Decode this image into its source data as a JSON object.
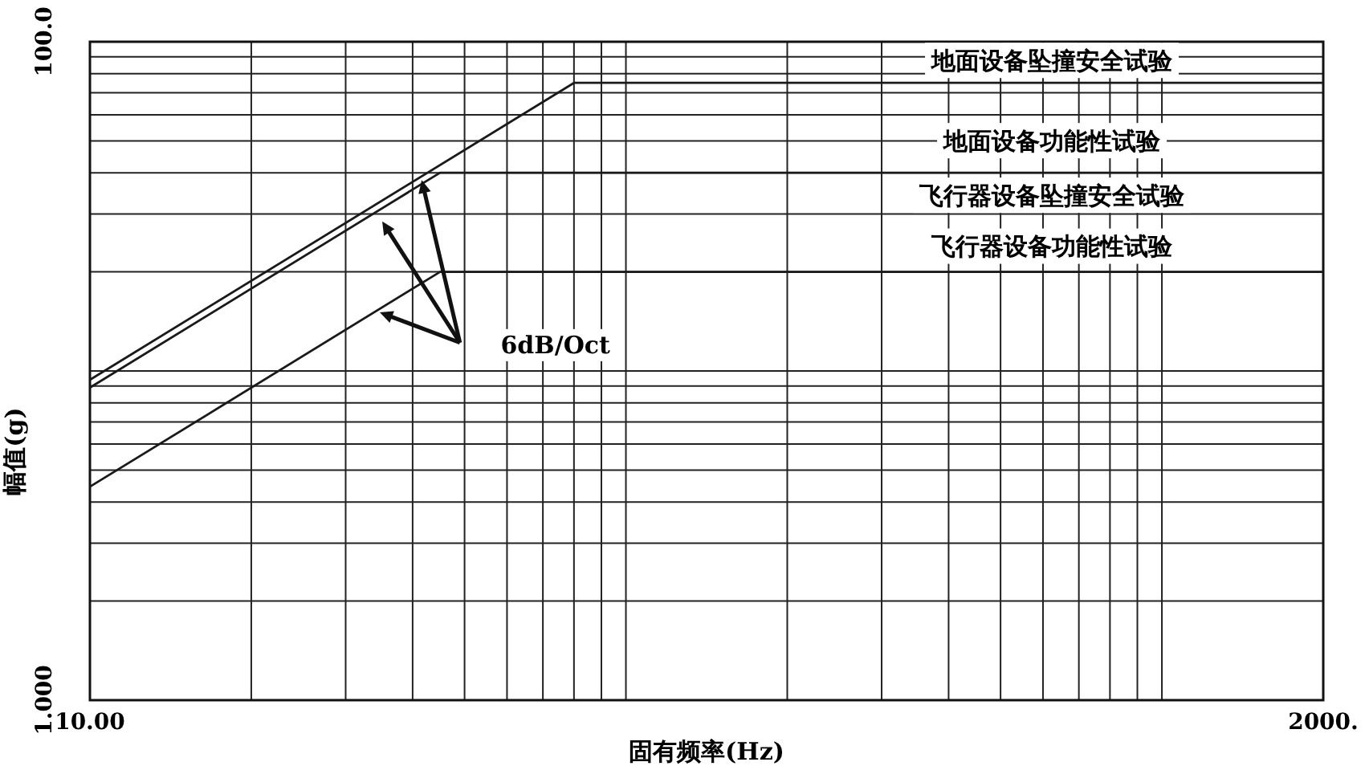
{
  "chart_data": {
    "type": "line",
    "xlabel": "固有频率(Hz)",
    "ylabel": "幅值(g)",
    "log": "xy",
    "grid": true,
    "line_style": "solid",
    "xlim": [
      10,
      2000
    ],
    "ylim": [
      1,
      100
    ],
    "xticks": [
      {
        "value": 10,
        "label": "10.00"
      },
      {
        "value": 20,
        "label": null
      },
      {
        "value": 30,
        "label": null
      },
      {
        "value": 40,
        "label": null
      },
      {
        "value": 50,
        "label": null
      },
      {
        "value": 60,
        "label": null
      },
      {
        "value": 70,
        "label": null
      },
      {
        "value": 80,
        "label": null
      },
      {
        "value": 90,
        "label": null
      },
      {
        "value": 100,
        "label": null
      },
      {
        "value": 200,
        "label": null
      },
      {
        "value": 300,
        "label": null
      },
      {
        "value": 400,
        "label": null
      },
      {
        "value": 500,
        "label": null
      },
      {
        "value": 600,
        "label": null
      },
      {
        "value": 700,
        "label": null
      },
      {
        "value": 800,
        "label": null
      },
      {
        "value": 900,
        "label": null
      },
      {
        "value": 1000,
        "label": null
      },
      {
        "value": 2000,
        "label": "2000."
      }
    ],
    "yticks": [
      {
        "value": 1,
        "label": "1.000"
      },
      {
        "value": 2,
        "label": null
      },
      {
        "value": 3,
        "label": null
      },
      {
        "value": 4,
        "label": null
      },
      {
        "value": 5,
        "label": null
      },
      {
        "value": 6,
        "label": null
      },
      {
        "value": 7,
        "label": null
      },
      {
        "value": 8,
        "label": null
      },
      {
        "value": 9,
        "label": null
      },
      {
        "value": 10,
        "label": null
      },
      {
        "value": 20,
        "label": null
      },
      {
        "value": 30,
        "label": null
      },
      {
        "value": 40,
        "label": null
      },
      {
        "value": 50,
        "label": null
      },
      {
        "value": 60,
        "label": null
      },
      {
        "value": 70,
        "label": null
      },
      {
        "value": 80,
        "label": null
      },
      {
        "value": 90,
        "label": null
      },
      {
        "value": 100,
        "label": "100.0"
      }
    ],
    "series": [
      {
        "color": "#1a1a1a",
        "x": [
          10,
          80,
          2000
        ],
        "values": [
          9.4,
          75,
          75
        ]
      },
      {
        "color": "#1a1a1a",
        "x": [
          10,
          45,
          2000
        ],
        "values": [
          8.9,
          40,
          40
        ]
      },
      {
        "color": "#1a1a1a",
        "x": [
          10,
          45,
          2000
        ],
        "values": [
          4.45,
          20,
          20
        ]
      }
    ],
    "annotations": [
      "地面设备坠撞安全试验",
      "地面设备功能性试验",
      "飞行器设备坠撞安全试验",
      "飞行器设备功能性试验",
      "6dB/Oct"
    ]
  }
}
